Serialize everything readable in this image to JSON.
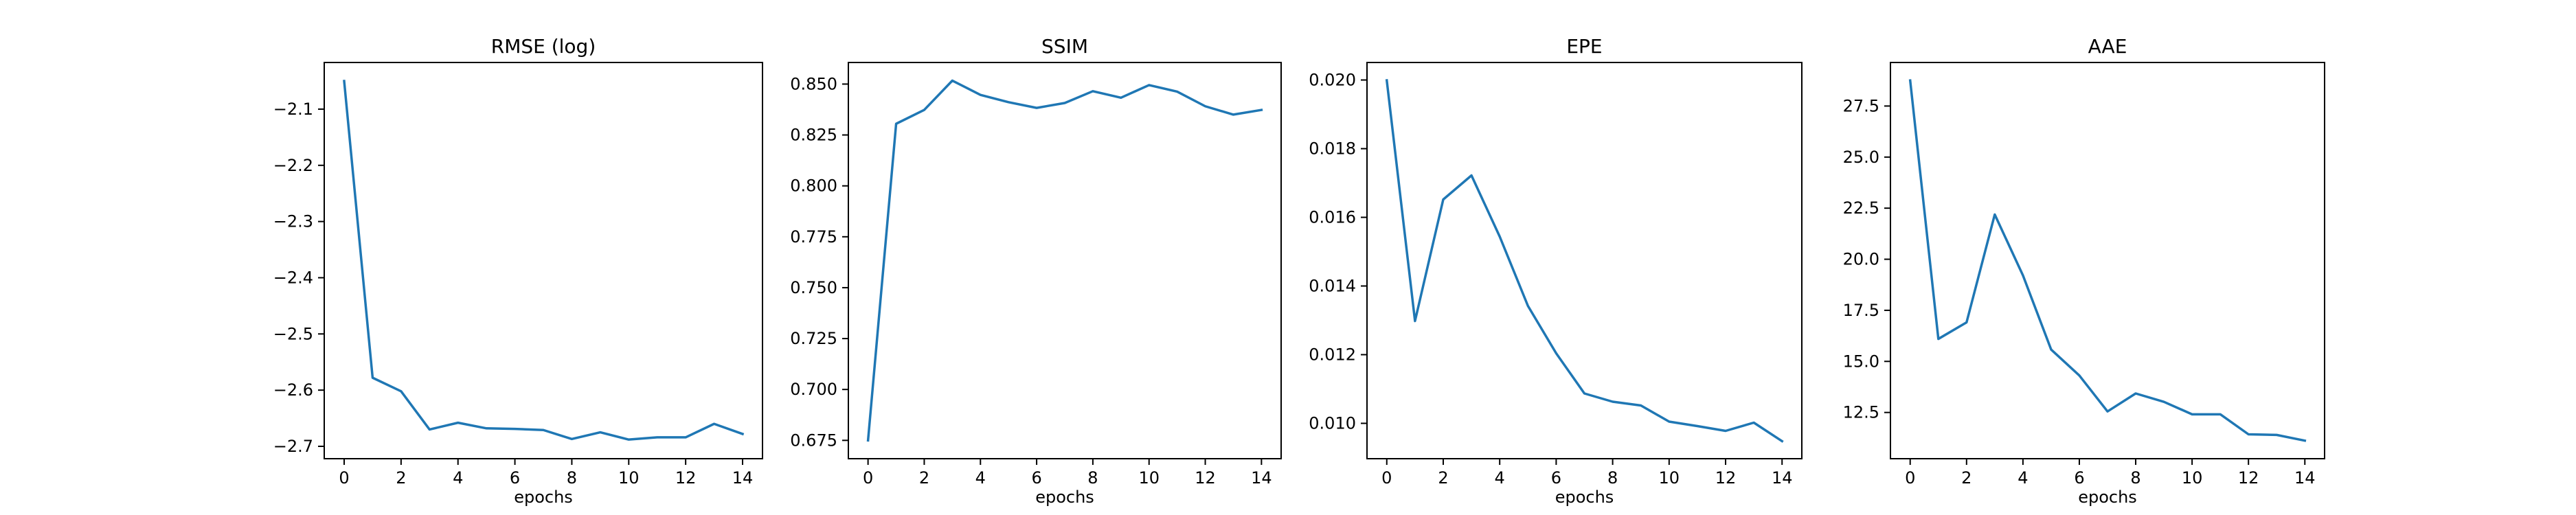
{
  "chart_data": [
    {
      "type": "line",
      "title": "RMSE (log)",
      "xlabel": "epochs",
      "ylabel": "",
      "x": [
        0,
        1,
        2,
        3,
        4,
        5,
        6,
        7,
        8,
        9,
        10,
        11,
        12,
        13,
        14
      ],
      "series": [
        {
          "values": [
            -2.05,
            -2.578,
            -2.602,
            -2.67,
            -2.658,
            -2.668,
            -2.669,
            -2.671,
            -2.687,
            -2.675,
            -2.688,
            -2.684,
            -2.684,
            -2.66,
            -2.678
          ]
        }
      ],
      "xlim": [
        -0.7,
        14.7
      ],
      "ylim": [
        -2.722,
        -2.017
      ],
      "xticks": [
        0,
        2,
        4,
        6,
        8,
        10,
        12,
        14
      ],
      "xtick_labels": [
        "0",
        "2",
        "4",
        "6",
        "8",
        "10",
        "12",
        "14"
      ],
      "yticks": [
        -2.1,
        -2.2,
        -2.3,
        -2.4,
        -2.5,
        -2.6,
        -2.7
      ],
      "ytick_labels": [
        "−2.1",
        "−2.2",
        "−2.3",
        "−2.4",
        "−2.5",
        "−2.6",
        "−2.7"
      ],
      "grid": false,
      "color": "#1f77b4"
    },
    {
      "type": "line",
      "title": "SSIM",
      "xlabel": "epochs",
      "ylabel": "",
      "x": [
        0,
        1,
        2,
        3,
        4,
        5,
        6,
        7,
        8,
        9,
        10,
        11,
        12,
        13,
        14
      ],
      "series": [
        {
          "values": [
            0.675,
            0.8305,
            0.8373,
            0.8517,
            0.8447,
            0.8411,
            0.8383,
            0.8407,
            0.8465,
            0.8433,
            0.8495,
            0.8463,
            0.8391,
            0.835,
            0.8373
          ]
        }
      ],
      "xlim": [
        -0.7,
        14.7
      ],
      "ylim": [
        0.666,
        0.8606
      ],
      "xticks": [
        0,
        2,
        4,
        6,
        8,
        10,
        12,
        14
      ],
      "xtick_labels": [
        "0",
        "2",
        "4",
        "6",
        "8",
        "10",
        "12",
        "14"
      ],
      "yticks": [
        0.675,
        0.7,
        0.725,
        0.75,
        0.775,
        0.8,
        0.825,
        0.85
      ],
      "ytick_labels": [
        "0.675",
        "0.700",
        "0.725",
        "0.750",
        "0.775",
        "0.800",
        "0.825",
        "0.850"
      ],
      "grid": false,
      "color": "#1f77b4"
    },
    {
      "type": "line",
      "title": "EPE",
      "xlabel": "epochs",
      "ylabel": "",
      "x": [
        0,
        1,
        2,
        3,
        4,
        5,
        6,
        7,
        8,
        9,
        10,
        11,
        12,
        13,
        14
      ],
      "series": [
        {
          "values": [
            0.01999,
            0.01298,
            0.01652,
            0.01722,
            0.01544,
            0.01342,
            0.01204,
            0.01087,
            0.01063,
            0.01052,
            0.01005,
            0.00992,
            0.00978,
            0.01002,
            0.00948
          ]
        }
      ],
      "xlim": [
        -0.7,
        14.7
      ],
      "ylim": [
        0.00897,
        0.02051
      ],
      "xticks": [
        0,
        2,
        4,
        6,
        8,
        10,
        12,
        14
      ],
      "xtick_labels": [
        "0",
        "2",
        "4",
        "6",
        "8",
        "10",
        "12",
        "14"
      ],
      "yticks": [
        0.01,
        0.012,
        0.014,
        0.016,
        0.018,
        0.02
      ],
      "ytick_labels": [
        "0.010",
        "0.012",
        "0.014",
        "0.016",
        "0.018",
        "0.020"
      ],
      "grid": false,
      "color": "#1f77b4"
    },
    {
      "type": "line",
      "title": "AAE",
      "xlabel": "epochs",
      "ylabel": "",
      "x": [
        0,
        1,
        2,
        3,
        4,
        5,
        6,
        7,
        8,
        9,
        10,
        11,
        12,
        13,
        14
      ],
      "series": [
        {
          "values": [
            28.75,
            16.1,
            16.91,
            22.19,
            19.21,
            15.58,
            14.31,
            12.55,
            13.43,
            13.02,
            12.41,
            12.41,
            11.43,
            11.4,
            11.12
          ]
        }
      ],
      "xlim": [
        -0.7,
        14.7
      ],
      "ylim": [
        10.237,
        29.631
      ],
      "xticks": [
        0,
        2,
        4,
        6,
        8,
        10,
        12,
        14
      ],
      "xtick_labels": [
        "0",
        "2",
        "4",
        "6",
        "8",
        "10",
        "12",
        "14"
      ],
      "yticks": [
        12.5,
        15,
        17.5,
        20,
        22.5,
        25,
        27.5
      ],
      "ytick_labels": [
        "12.5",
        "15.0",
        "17.5",
        "20.0",
        "22.5",
        "25.0",
        "27.5"
      ],
      "grid": false,
      "color": "#1f77b4"
    }
  ]
}
